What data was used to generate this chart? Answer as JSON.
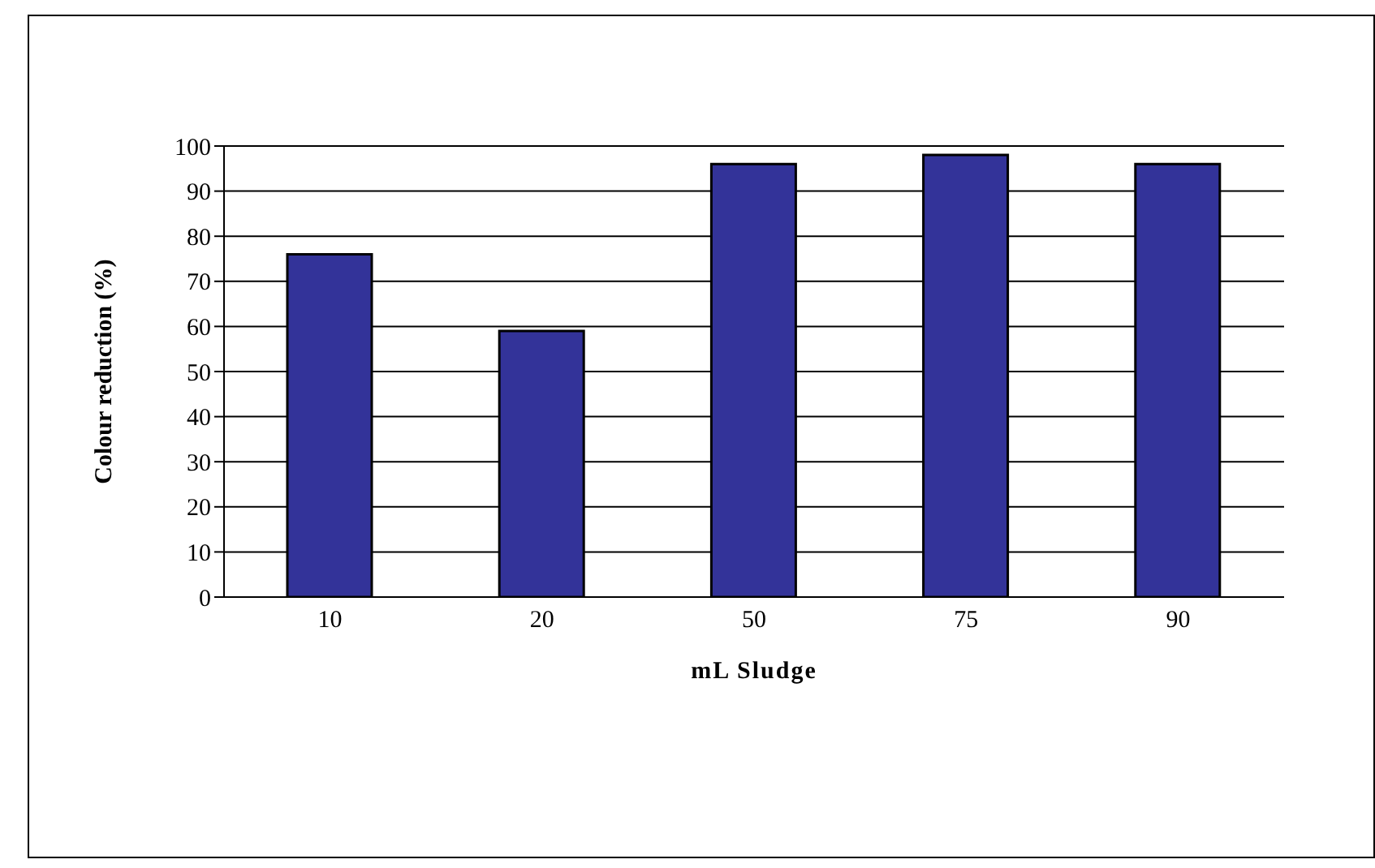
{
  "chart_data": {
    "type": "bar",
    "xlabel": "mL Sludge",
    "ylabel": "Colour reduction (%)",
    "categories": [
      "10",
      "20",
      "50",
      "75",
      "90"
    ],
    "values": [
      76,
      59,
      96,
      98,
      96
    ],
    "color": "#333399",
    "ylim": [
      0,
      100
    ],
    "yticks": [
      0,
      10,
      20,
      30,
      40,
      50,
      60,
      70,
      80,
      90,
      100
    ],
    "grid": "y"
  }
}
